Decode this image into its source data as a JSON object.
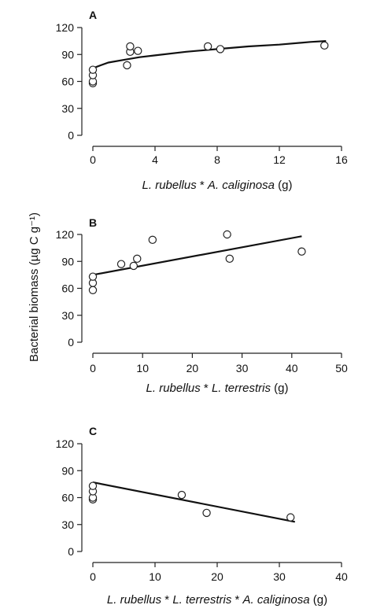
{
  "ylabel": "Bacterial biomass (µg C g⁻¹)",
  "chart_data": [
    {
      "type": "scatter",
      "panel_label": "A",
      "xlabel_italic_1": "L. rubellus",
      "xlabel_mid": " * ",
      "xlabel_italic_2": "A. caliginosa",
      "xlabel_italic_3": "",
      "xlabel_mid2": "",
      "xlabel_unit": " (g)",
      "xlim": [
        0,
        16
      ],
      "ylim": [
        0,
        120
      ],
      "xticks": [
        0,
        4,
        8,
        12,
        16
      ],
      "yticks": [
        0,
        30,
        60,
        90,
        120
      ],
      "x": [
        0,
        0,
        0,
        0,
        2.2,
        2.4,
        2.4,
        2.9,
        7.4,
        8.2,
        14.9
      ],
      "y": [
        58,
        60,
        67,
        73,
        78,
        93,
        99,
        94,
        99,
        96,
        100
      ],
      "fit": {
        "form": "curve",
        "x": [
          0,
          0.2,
          0.5,
          1,
          2,
          3,
          4,
          6,
          8,
          10,
          12,
          14,
          15
        ],
        "y": [
          72,
          76,
          78,
          81,
          84,
          87,
          89,
          93,
          96,
          99,
          101,
          104,
          105
        ]
      }
    },
    {
      "type": "scatter",
      "panel_label": "B",
      "xlabel_italic_1": "L. rubellus",
      "xlabel_mid": " * ",
      "xlabel_italic_2": "L. terrestris",
      "xlabel_italic_3": "",
      "xlabel_mid2": "",
      "xlabel_unit": " (g)",
      "xlim": [
        0,
        50
      ],
      "ylim": [
        0,
        120
      ],
      "xticks": [
        0,
        10,
        20,
        30,
        40,
        50
      ],
      "yticks": [
        0,
        30,
        60,
        90,
        120
      ],
      "x": [
        0,
        0,
        0,
        5.7,
        8.2,
        8.9,
        12,
        27,
        27.5,
        42
      ],
      "y": [
        58,
        66,
        73,
        87,
        85,
        93,
        114,
        120,
        93,
        101
      ],
      "fit": {
        "form": "line",
        "x": [
          0,
          42
        ],
        "y": [
          75,
          118
        ]
      }
    },
    {
      "type": "scatter",
      "panel_label": "C",
      "xlabel_italic_1": "L. rubellus",
      "xlabel_mid": " * ",
      "xlabel_italic_2": "L. terrestris",
      "xlabel_mid2": " * ",
      "xlabel_italic_3": "A. caliginosa",
      "xlabel_unit": " (g)",
      "xlim": [
        0,
        40
      ],
      "ylim": [
        0,
        120
      ],
      "xticks": [
        0,
        10,
        20,
        30,
        40
      ],
      "yticks": [
        0,
        30,
        60,
        90,
        120
      ],
      "x": [
        0,
        0,
        0,
        0,
        14.3,
        18.3,
        31.8
      ],
      "y": [
        58,
        60,
        67,
        73,
        63,
        43,
        38
      ],
      "fit": {
        "form": "line",
        "x": [
          0,
          32.5
        ],
        "y": [
          77,
          33
        ]
      }
    }
  ]
}
